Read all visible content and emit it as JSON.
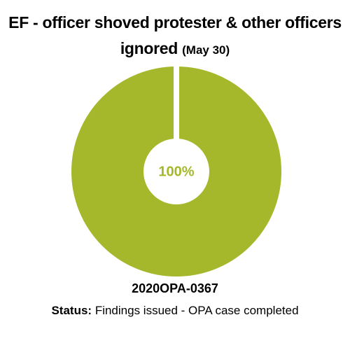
{
  "chart_data": {
    "type": "pie",
    "donut": true,
    "title": "EF - officer shoved protester & other officers ignored",
    "title_note": "(May 30)",
    "categories": [
      null
    ],
    "values": [
      100
    ],
    "value_labels": [
      "100%"
    ],
    "colors": [
      "#a5b82b"
    ],
    "caption": "2020OPA-0367",
    "status_label": "Status:",
    "status": "Findings issued - OPA case completed"
  }
}
